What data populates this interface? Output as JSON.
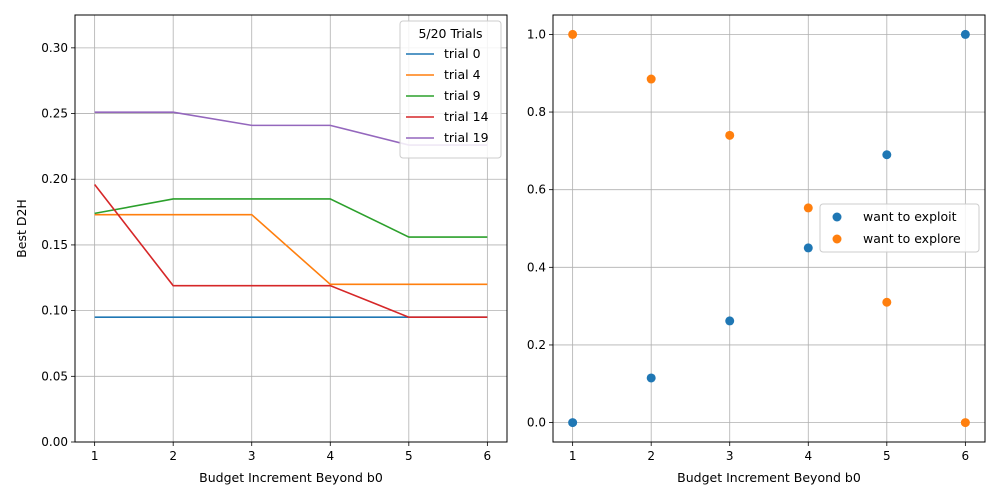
{
  "chart_data": [
    {
      "type": "line",
      "xlabel": "Budget Increment Beyond b0",
      "ylabel": "Best D2H",
      "x": [
        1,
        2,
        3,
        4,
        5,
        6
      ],
      "xticks": [
        "1",
        "2",
        "3",
        "4",
        "5",
        "6"
      ],
      "xlim": [
        0.75,
        6.25
      ],
      "ylim": [
        0,
        0.325
      ],
      "yticks": [
        "0.00",
        "0.05",
        "0.10",
        "0.15",
        "0.20",
        "0.25",
        "0.30"
      ],
      "grid": true,
      "legend": {
        "title": "5/20 Trials",
        "position": "upper-right"
      },
      "series": [
        {
          "name": "trial 0",
          "color": "#1f77b4",
          "values": [
            0.095,
            0.095,
            0.095,
            0.095,
            0.095,
            0.095
          ]
        },
        {
          "name": "trial 4",
          "color": "#ff7f0e",
          "values": [
            0.173,
            0.173,
            0.173,
            0.12,
            0.12,
            0.12
          ]
        },
        {
          "name": "trial 9",
          "color": "#2ca02c",
          "values": [
            0.174,
            0.185,
            0.185,
            0.185,
            0.156,
            0.156
          ]
        },
        {
          "name": "trial 14",
          "color": "#d62728",
          "values": [
            0.196,
            0.119,
            0.119,
            0.119,
            0.095,
            0.095
          ]
        },
        {
          "name": "trial 19",
          "color": "#9467bd",
          "values": [
            0.251,
            0.251,
            0.241,
            0.241,
            0.226,
            0.226
          ]
        }
      ]
    },
    {
      "type": "scatter",
      "xlabel": "Budget Increment Beyond b0",
      "ylabel": "",
      "x": [
        1,
        2,
        3,
        4,
        5,
        6
      ],
      "xticks": [
        "1",
        "2",
        "3",
        "4",
        "5",
        "6"
      ],
      "xlim": [
        0.75,
        6.25
      ],
      "ylim": [
        -0.05,
        1.05
      ],
      "yticks": [
        "0.0",
        "0.2",
        "0.4",
        "0.6",
        "0.8",
        "1.0"
      ],
      "grid": true,
      "legend": {
        "title": "",
        "position": "center-right"
      },
      "series": [
        {
          "name": "want to exploit",
          "color": "#1f77b4",
          "values": [
            0.0,
            0.115,
            0.262,
            0.45,
            0.69,
            1.0
          ]
        },
        {
          "name": "want to explore",
          "color": "#ff7f0e",
          "values": [
            1.0,
            0.885,
            0.74,
            0.553,
            0.31,
            0.0
          ]
        }
      ]
    }
  ]
}
